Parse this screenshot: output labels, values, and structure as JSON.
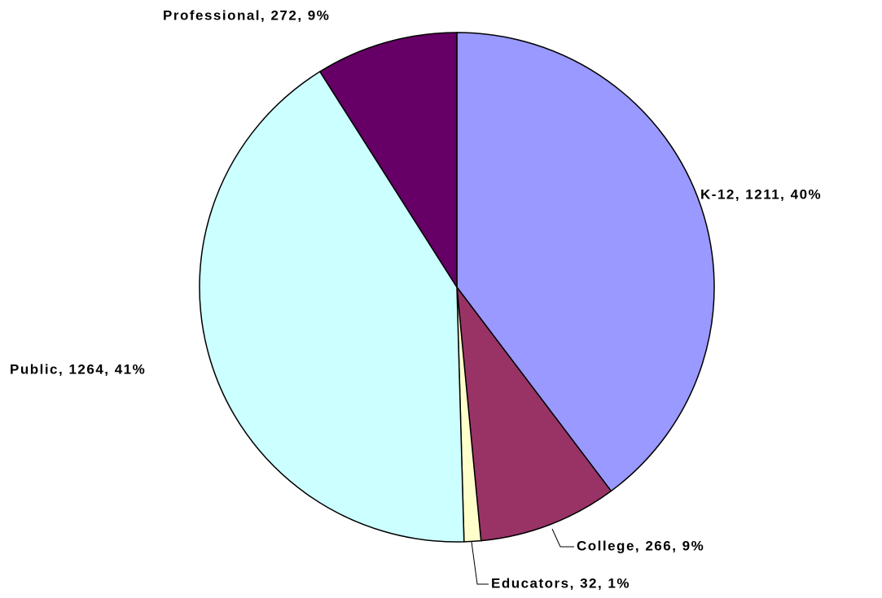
{
  "chart_data": {
    "type": "pie",
    "categories": [
      "K-12",
      "College",
      "Educators",
      "Public",
      "Professional"
    ],
    "values": [
      1211,
      266,
      32,
      1264,
      272
    ],
    "value_labels": [
      "K-12, 1211, 40%",
      "College, 266, 9%",
      "Educators, 32, 1%",
      "Public, 1264, 41%",
      "Professional, 272, 9%"
    ],
    "colors": [
      "#9999ff",
      "#993366",
      "#ffffcc",
      "#ccffff",
      "#660066"
    ]
  }
}
